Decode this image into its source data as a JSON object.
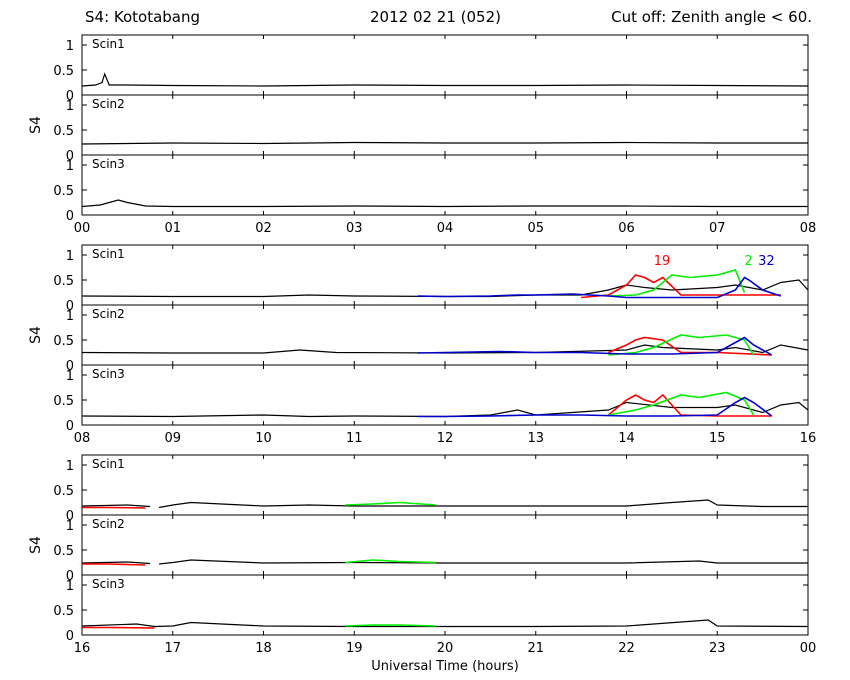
{
  "header": {
    "station": "S4: Kototabang",
    "date": "2012 02 21 (052)",
    "cutoff": "Cut off: Zenith angle < 60."
  },
  "chart_data": {
    "type": "line",
    "xlabel": "Universal Time (hours)",
    "ylabel": "S4",
    "y_ticks": [
      "0",
      "0.5",
      "1"
    ],
    "ylim": [
      0,
      1.2
    ],
    "subplot_labels": [
      "Scin1",
      "Scin2",
      "Scin3"
    ],
    "series_colors": {
      "black": "#000000",
      "red": "#ff0000",
      "green": "#00ee00",
      "blue": "#0000cc"
    },
    "groups": [
      {
        "x_range": [
          0,
          8
        ],
        "x_tick_labels": [
          "00",
          "01",
          "02",
          "03",
          "04",
          "05",
          "06",
          "07",
          "08"
        ],
        "prn_labels": [],
        "panels": [
          {
            "label": "Scin1",
            "series": [
              {
                "color": "black",
                "x": [
                  0,
                  0.15,
                  0.22,
                  0.25,
                  0.3,
                  0.5,
                  1,
                  2,
                  3,
                  4,
                  5,
                  6,
                  7,
                  8
                ],
                "y": [
                  0.18,
                  0.2,
                  0.25,
                  0.42,
                  0.2,
                  0.2,
                  0.19,
                  0.18,
                  0.2,
                  0.19,
                  0.19,
                  0.2,
                  0.19,
                  0.18
                ]
              }
            ]
          },
          {
            "label": "Scin2",
            "series": [
              {
                "color": "black",
                "x": [
                  0,
                  1,
                  2,
                  3,
                  4,
                  5,
                  6,
                  7,
                  8
                ],
                "y": [
                  0.22,
                  0.24,
                  0.23,
                  0.25,
                  0.24,
                  0.24,
                  0.25,
                  0.24,
                  0.24
                ]
              }
            ]
          },
          {
            "label": "Scin3",
            "series": [
              {
                "color": "black",
                "x": [
                  0,
                  0.2,
                  0.3,
                  0.4,
                  0.5,
                  0.7,
                  1,
                  2,
                  3,
                  4,
                  5,
                  6,
                  7,
                  8
                ],
                "y": [
                  0.17,
                  0.2,
                  0.25,
                  0.3,
                  0.25,
                  0.18,
                  0.17,
                  0.17,
                  0.18,
                  0.17,
                  0.18,
                  0.18,
                  0.17,
                  0.17
                ]
              }
            ]
          }
        ]
      },
      {
        "x_range": [
          8,
          16
        ],
        "x_tick_labels": [
          "08",
          "09",
          "10",
          "11",
          "12",
          "13",
          "14",
          "15",
          "16"
        ],
        "prn_labels": [
          {
            "text": "19",
            "x": 14.3,
            "color": "red"
          },
          {
            "text": "2",
            "x": 15.3,
            "color": "green"
          },
          {
            "text": "32",
            "x": 15.45,
            "color": "blue"
          }
        ],
        "panels": [
          {
            "label": "Scin1",
            "series": [
              {
                "color": "black",
                "x": [
                  8,
                  9,
                  10,
                  10.5,
                  11,
                  12,
                  12.5,
                  13,
                  13.5,
                  13.8,
                  14,
                  14.2,
                  14.5,
                  15,
                  15.2,
                  15.5,
                  15.7,
                  15.9,
                  16
                ],
                "y": [
                  0.18,
                  0.17,
                  0.17,
                  0.2,
                  0.18,
                  0.17,
                  0.17,
                  0.2,
                  0.2,
                  0.3,
                  0.4,
                  0.35,
                  0.3,
                  0.35,
                  0.4,
                  0.3,
                  0.45,
                  0.5,
                  0.3
                ]
              },
              {
                "color": "red",
                "x": [
                  13.5,
                  13.8,
                  14,
                  14.1,
                  14.2,
                  14.3,
                  14.4,
                  14.6,
                  15,
                  15.5,
                  15.7
                ],
                "y": [
                  0.15,
                  0.2,
                  0.4,
                  0.6,
                  0.55,
                  0.45,
                  0.55,
                  0.2,
                  0.2,
                  0.2,
                  0.2
                ]
              },
              {
                "color": "green",
                "x": [
                  13.8,
                  14.1,
                  14.3,
                  14.5,
                  14.7,
                  15,
                  15.2,
                  15.3
                ],
                "y": [
                  0.18,
                  0.2,
                  0.3,
                  0.6,
                  0.55,
                  0.6,
                  0.7,
                  0.25
                ]
              },
              {
                "color": "blue",
                "x": [
                  11.7,
                  12,
                  12.5,
                  12.8,
                  13,
                  13.4,
                  13.8,
                  14,
                  14.5,
                  15,
                  15.2,
                  15.3,
                  15.35,
                  15.5,
                  15.7
                ],
                "y": [
                  0.18,
                  0.17,
                  0.18,
                  0.2,
                  0.2,
                  0.22,
                  0.18,
                  0.15,
                  0.15,
                  0.15,
                  0.3,
                  0.55,
                  0.5,
                  0.3,
                  0.18
                ]
              }
            ]
          },
          {
            "label": "Scin2",
            "series": [
              {
                "color": "black",
                "x": [
                  8,
                  9,
                  10,
                  10.4,
                  10.8,
                  12,
                  13,
                  14,
                  14.2,
                  14.4,
                  15,
                  15.2,
                  15.5,
                  15.7,
                  16
                ],
                "y": [
                  0.25,
                  0.24,
                  0.24,
                  0.3,
                  0.25,
                  0.24,
                  0.25,
                  0.3,
                  0.4,
                  0.35,
                  0.3,
                  0.35,
                  0.25,
                  0.4,
                  0.3
                ]
              },
              {
                "color": "red",
                "x": [
                  13.8,
                  14,
                  14.1,
                  14.2,
                  14.4,
                  14.6,
                  15,
                  15.6
                ],
                "y": [
                  0.25,
                  0.4,
                  0.5,
                  0.55,
                  0.5,
                  0.25,
                  0.25,
                  0.2
                ]
              },
              {
                "color": "green",
                "x": [
                  13.8,
                  14.1,
                  14.3,
                  14.6,
                  14.8,
                  15.1,
                  15.3,
                  15.4
                ],
                "y": [
                  0.2,
                  0.25,
                  0.35,
                  0.6,
                  0.55,
                  0.6,
                  0.5,
                  0.2
                ]
              },
              {
                "color": "blue",
                "x": [
                  11.7,
                  12,
                  12.6,
                  13,
                  13.5,
                  14,
                  14.5,
                  15,
                  15.2,
                  15.3,
                  15.4,
                  15.6
                ],
                "y": [
                  0.24,
                  0.25,
                  0.27,
                  0.25,
                  0.25,
                  0.22,
                  0.22,
                  0.25,
                  0.45,
                  0.55,
                  0.4,
                  0.2
                ]
              }
            ]
          },
          {
            "label": "Scin3",
            "series": [
              {
                "color": "black",
                "x": [
                  8,
                  9,
                  10,
                  10.5,
                  11,
                  12,
                  12.5,
                  12.8,
                  13,
                  13.8,
                  14,
                  14.5,
                  15,
                  15.2,
                  15.5,
                  15.7,
                  15.9,
                  16
                ],
                "y": [
                  0.18,
                  0.17,
                  0.2,
                  0.17,
                  0.18,
                  0.17,
                  0.2,
                  0.3,
                  0.2,
                  0.3,
                  0.45,
                  0.35,
                  0.35,
                  0.4,
                  0.25,
                  0.4,
                  0.45,
                  0.3
                ]
              },
              {
                "color": "red",
                "x": [
                  13.8,
                  14,
                  14.1,
                  14.2,
                  14.3,
                  14.4,
                  14.6,
                  15,
                  15.6
                ],
                "y": [
                  0.2,
                  0.5,
                  0.6,
                  0.5,
                  0.45,
                  0.6,
                  0.2,
                  0.18,
                  0.18
                ]
              },
              {
                "color": "green",
                "x": [
                  13.8,
                  14.1,
                  14.3,
                  14.6,
                  14.8,
                  15.1,
                  15.3,
                  15.4
                ],
                "y": [
                  0.2,
                  0.3,
                  0.4,
                  0.6,
                  0.55,
                  0.65,
                  0.5,
                  0.2
                ]
              },
              {
                "color": "blue",
                "x": [
                  11.7,
                  12,
                  12.5,
                  13,
                  13.5,
                  14,
                  14.5,
                  15,
                  15.2,
                  15.3,
                  15.4,
                  15.6
                ],
                "y": [
                  0.17,
                  0.17,
                  0.18,
                  0.2,
                  0.2,
                  0.18,
                  0.18,
                  0.2,
                  0.45,
                  0.55,
                  0.45,
                  0.18
                ]
              }
            ]
          }
        ]
      },
      {
        "x_range": [
          16,
          24
        ],
        "x_tick_labels": [
          "16",
          "17",
          "18",
          "19",
          "20",
          "21",
          "22",
          "23",
          "00"
        ],
        "prn_labels": [],
        "panels": [
          {
            "label": "Scin1",
            "series": [
              {
                "color": "black",
                "x": [
                  16,
                  16.5,
                  16.75,
                  null,
                  16.85,
                  17,
                  17.2,
                  18,
                  18.5,
                  19,
                  20,
                  21,
                  22,
                  22.5,
                  22.9,
                  23,
                  23.5,
                  24
                ],
                "y": [
                  0.18,
                  0.2,
                  0.17,
                  null,
                  0.15,
                  0.2,
                  0.25,
                  0.18,
                  0.2,
                  0.18,
                  0.18,
                  0.18,
                  0.18,
                  0.25,
                  0.3,
                  0.2,
                  0.17,
                  0.17
                ]
              },
              {
                "color": "red",
                "x": [
                  16,
                  16.3,
                  16.7
                ],
                "y": [
                  0.15,
                  0.15,
                  0.14
                ]
              },
              {
                "color": "green",
                "x": [
                  18.9,
                  19.2,
                  19.5,
                  19.9
                ],
                "y": [
                  0.2,
                  0.22,
                  0.25,
                  0.2
                ]
              }
            ]
          },
          {
            "label": "Scin2",
            "series": [
              {
                "color": "black",
                "x": [
                  16,
                  16.5,
                  16.75,
                  null,
                  16.85,
                  17,
                  17.2,
                  18,
                  19,
                  20,
                  21,
                  22,
                  22.8,
                  23,
                  24
                ],
                "y": [
                  0.24,
                  0.26,
                  0.23,
                  null,
                  0.22,
                  0.25,
                  0.3,
                  0.24,
                  0.25,
                  0.24,
                  0.24,
                  0.24,
                  0.28,
                  0.24,
                  0.24
                ]
              },
              {
                "color": "red",
                "x": [
                  16,
                  16.3,
                  16.7
                ],
                "y": [
                  0.22,
                  0.22,
                  0.2
                ]
              },
              {
                "color": "green",
                "x": [
                  18.9,
                  19.2,
                  19.5,
                  19.9
                ],
                "y": [
                  0.25,
                  0.3,
                  0.27,
                  0.25
                ]
              }
            ]
          },
          {
            "label": "Scin3",
            "series": [
              {
                "color": "black",
                "x": [
                  16,
                  16.6,
                  16.8,
                  17,
                  17.2,
                  18,
                  19,
                  20,
                  21,
                  22,
                  22.9,
                  23,
                  24
                ],
                "y": [
                  0.18,
                  0.22,
                  0.17,
                  0.18,
                  0.25,
                  0.18,
                  0.17,
                  0.17,
                  0.17,
                  0.18,
                  0.3,
                  0.18,
                  0.17
                ]
              },
              {
                "color": "red",
                "x": [
                  16,
                  16.3,
                  16.8
                ],
                "y": [
                  0.15,
                  0.15,
                  0.14
                ]
              },
              {
                "color": "green",
                "x": [
                  18.9,
                  19.2,
                  19.5,
                  19.9
                ],
                "y": [
                  0.18,
                  0.2,
                  0.2,
                  0.18
                ]
              }
            ]
          }
        ]
      }
    ]
  }
}
